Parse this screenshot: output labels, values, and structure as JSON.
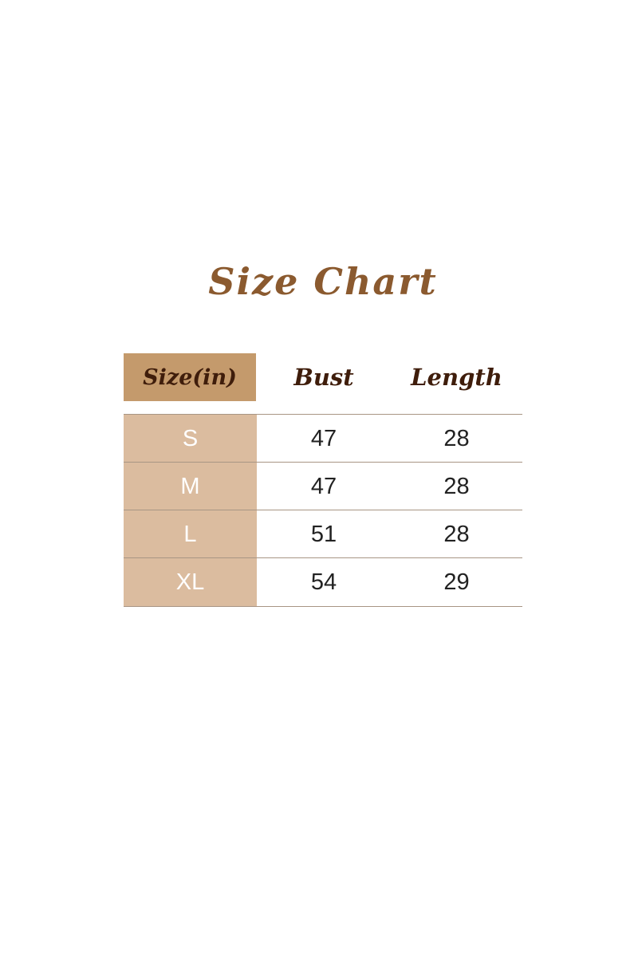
{
  "title": "Size Chart",
  "table": {
    "headers": [
      "Size(in)",
      "Bust",
      "Length"
    ],
    "rows": [
      [
        "S",
        "47",
        "28"
      ],
      [
        "M",
        "47",
        "28"
      ],
      [
        "L",
        "51",
        "28"
      ],
      [
        "XL",
        "54",
        "29"
      ]
    ]
  },
  "colors": {
    "title": "#8b5a2f",
    "header_bg": "#c49a6c",
    "size_col_bg": "#dbbc9f",
    "header_text": "#3f1d0b"
  }
}
